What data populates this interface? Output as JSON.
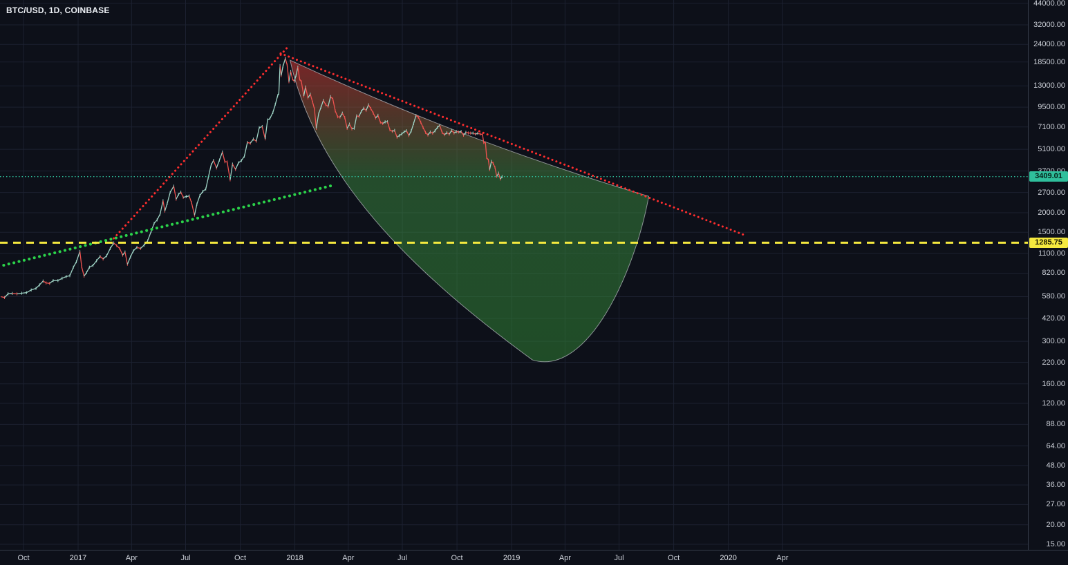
{
  "header": {
    "symbol_title": "BTC/USD, 1D, COINBASE"
  },
  "chart_data": {
    "type": "candlestick",
    "symbol": "BTC/USD",
    "interval": "1D",
    "exchange": "COINBASE",
    "scale": "log",
    "ylim": [
      15,
      44000
    ],
    "grid": true,
    "colors": {
      "background": "#0d1019",
      "grid": "#1c2130",
      "axis_border": "#363c49",
      "axis_text": "#cdd1d9",
      "candle_up": "#9fd4c6",
      "candle_down": "#ef5350",
      "trend_red": "#ff2e2e",
      "trend_green": "#2bd24a",
      "level_yellow": "#f5e93f",
      "current_teal": "#2fbf9c",
      "shape_outline": "#c9ccd2"
    },
    "price_axis": {
      "ticks": [
        "44000.00",
        "32000.00",
        "24000.00",
        "18500.00",
        "13000.00",
        "9500.00",
        "7100.00",
        "5100.00",
        "3700.00",
        "2700.00",
        "2000.00",
        "1500.00",
        "1100.00",
        "820.00",
        "580.00",
        "420.00",
        "300.00",
        "220.00",
        "160.00",
        "120.00",
        "88.00",
        "64.00",
        "48.00",
        "36.00",
        "27.00",
        "20.00",
        "15.00"
      ],
      "current_price": {
        "value": "3409.01",
        "price": 3409.01,
        "color": "#2fbf9c"
      },
      "level_label": {
        "value": "1285.75",
        "price": 1285.75,
        "color": "#f5e93f"
      }
    },
    "time_axis": {
      "ticks": [
        {
          "label": "Oct",
          "date": "2016-10-01"
        },
        {
          "label": "2017",
          "date": "2017-01-01"
        },
        {
          "label": "Apr",
          "date": "2017-04-01"
        },
        {
          "label": "Jul",
          "date": "2017-07-01"
        },
        {
          "label": "Oct",
          "date": "2017-10-01"
        },
        {
          "label": "2018",
          "date": "2018-01-01"
        },
        {
          "label": "Apr",
          "date": "2018-04-01"
        },
        {
          "label": "Jul",
          "date": "2018-07-01"
        },
        {
          "label": "Oct",
          "date": "2018-10-01"
        },
        {
          "label": "2019",
          "date": "2019-01-01"
        },
        {
          "label": "Apr",
          "date": "2019-04-01"
        },
        {
          "label": "Jul",
          "date": "2019-07-01"
        },
        {
          "label": "Oct",
          "date": "2019-10-01"
        },
        {
          "label": "2020",
          "date": "2020-01-01"
        },
        {
          "label": "Apr",
          "date": "2020-04-01"
        }
      ]
    },
    "series": [
      [
        "2016-08-24",
        580
      ],
      [
        "2016-08-30",
        572
      ],
      [
        "2016-09-05",
        605
      ],
      [
        "2016-09-12",
        608
      ],
      [
        "2016-09-20",
        604
      ],
      [
        "2016-09-28",
        610
      ],
      [
        "2016-10-06",
        615
      ],
      [
        "2016-10-14",
        640
      ],
      [
        "2016-10-22",
        655
      ],
      [
        "2016-10-28",
        690
      ],
      [
        "2016-11-03",
        730
      ],
      [
        "2016-11-08",
        710
      ],
      [
        "2016-11-14",
        705
      ],
      [
        "2016-11-20",
        735
      ],
      [
        "2016-11-28",
        735
      ],
      [
        "2016-12-05",
        760
      ],
      [
        "2016-12-12",
        780
      ],
      [
        "2016-12-18",
        790
      ],
      [
        "2016-12-24",
        895
      ],
      [
        "2016-12-29",
        970
      ],
      [
        "2017-01-04",
        1130
      ],
      [
        "2017-01-07",
        900
      ],
      [
        "2017-01-11",
        785
      ],
      [
        "2017-01-15",
        825
      ],
      [
        "2017-01-20",
        895
      ],
      [
        "2017-01-26",
        920
      ],
      [
        "2017-02-01",
        985
      ],
      [
        "2017-02-07",
        1050
      ],
      [
        "2017-02-12",
        1010
      ],
      [
        "2017-02-18",
        1060
      ],
      [
        "2017-02-24",
        1180
      ],
      [
        "2017-03-02",
        1280
      ],
      [
        "2017-03-07",
        1230
      ],
      [
        "2017-03-12",
        1180
      ],
      [
        "2017-03-17",
        1070
      ],
      [
        "2017-03-21",
        1120
      ],
      [
        "2017-03-25",
        935
      ],
      [
        "2017-03-30",
        1040
      ],
      [
        "2017-04-04",
        1140
      ],
      [
        "2017-04-10",
        1200
      ],
      [
        "2017-04-16",
        1180
      ],
      [
        "2017-04-22",
        1240
      ],
      [
        "2017-04-28",
        1320
      ],
      [
        "2017-05-04",
        1520
      ],
      [
        "2017-05-09",
        1710
      ],
      [
        "2017-05-14",
        1800
      ],
      [
        "2017-05-19",
        1960
      ],
      [
        "2017-05-24",
        2390
      ],
      [
        "2017-05-27",
        2050
      ],
      [
        "2017-05-31",
        2290
      ],
      [
        "2017-06-05",
        2700
      ],
      [
        "2017-06-11",
        2960
      ],
      [
        "2017-06-15",
        2440
      ],
      [
        "2017-06-19",
        2620
      ],
      [
        "2017-06-23",
        2710
      ],
      [
        "2017-06-27",
        2510
      ],
      [
        "2017-07-02",
        2540
      ],
      [
        "2017-07-07",
        2560
      ],
      [
        "2017-07-11",
        2320
      ],
      [
        "2017-07-16",
        1930
      ],
      [
        "2017-07-20",
        2270
      ],
      [
        "2017-07-25",
        2580
      ],
      [
        "2017-07-30",
        2740
      ],
      [
        "2017-08-04",
        2840
      ],
      [
        "2017-08-08",
        3340
      ],
      [
        "2017-08-13",
        4050
      ],
      [
        "2017-08-17",
        4330
      ],
      [
        "2017-08-22",
        3870
      ],
      [
        "2017-08-27",
        4350
      ],
      [
        "2017-09-01",
        4900
      ],
      [
        "2017-09-05",
        4250
      ],
      [
        "2017-09-09",
        4230
      ],
      [
        "2017-09-14",
        3250
      ],
      [
        "2017-09-18",
        4100
      ],
      [
        "2017-09-23",
        3790
      ],
      [
        "2017-09-28",
        4180
      ],
      [
        "2017-10-03",
        4320
      ],
      [
        "2017-10-08",
        4610
      ],
      [
        "2017-10-13",
        5640
      ],
      [
        "2017-10-18",
        5580
      ],
      [
        "2017-10-23",
        5930
      ],
      [
        "2017-10-28",
        5750
      ],
      [
        "2017-11-02",
        7020
      ],
      [
        "2017-11-07",
        7140
      ],
      [
        "2017-11-12",
        5950
      ],
      [
        "2017-11-16",
        7870
      ],
      [
        "2017-11-20",
        8040
      ],
      [
        "2017-11-25",
        8790
      ],
      [
        "2017-11-29",
        9880
      ],
      [
        "2017-12-03",
        11250
      ],
      [
        "2017-12-05",
        11650
      ],
      [
        "2017-12-07",
        17550
      ],
      [
        "2017-12-09",
        15150
      ],
      [
        "2017-12-12",
        17400
      ],
      [
        "2017-12-16",
        19500
      ],
      [
        "2017-12-19",
        17700
      ],
      [
        "2017-12-22",
        13830
      ],
      [
        "2017-12-25",
        16100
      ],
      [
        "2017-12-28",
        14400
      ],
      [
        "2017-12-31",
        13900
      ],
      [
        "2018-01-03",
        15200
      ],
      [
        "2018-01-06",
        17150
      ],
      [
        "2018-01-09",
        14400
      ],
      [
        "2018-01-12",
        13800
      ],
      [
        "2018-01-16",
        11200
      ],
      [
        "2018-01-19",
        12800
      ],
      [
        "2018-01-23",
        10900
      ],
      [
        "2018-01-27",
        11500
      ],
      [
        "2018-01-31",
        10200
      ],
      [
        "2018-02-03",
        9250
      ],
      [
        "2018-02-06",
        6950
      ],
      [
        "2018-02-10",
        8600
      ],
      [
        "2018-02-14",
        9500
      ],
      [
        "2018-02-18",
        10500
      ],
      [
        "2018-02-22",
        9850
      ],
      [
        "2018-02-26",
        9600
      ],
      [
        "2018-03-02",
        11100
      ],
      [
        "2018-03-06",
        10700
      ],
      [
        "2018-03-10",
        9000
      ],
      [
        "2018-03-14",
        8250
      ],
      [
        "2018-03-18",
        8200
      ],
      [
        "2018-03-22",
        8700
      ],
      [
        "2018-03-26",
        8150
      ],
      [
        "2018-03-30",
        6950
      ],
      [
        "2018-04-03",
        7400
      ],
      [
        "2018-04-07",
        6900
      ],
      [
        "2018-04-11",
        6970
      ],
      [
        "2018-04-15",
        8350
      ],
      [
        "2018-04-19",
        8290
      ],
      [
        "2018-04-23",
        8950
      ],
      [
        "2018-04-27",
        9350
      ],
      [
        "2018-05-01",
        9050
      ],
      [
        "2018-05-05",
        9830
      ],
      [
        "2018-05-09",
        9300
      ],
      [
        "2018-05-13",
        8700
      ],
      [
        "2018-05-17",
        8100
      ],
      [
        "2018-05-21",
        8420
      ],
      [
        "2018-05-25",
        7600
      ],
      [
        "2018-05-29",
        7470
      ],
      [
        "2018-06-02",
        7650
      ],
      [
        "2018-06-06",
        7650
      ],
      [
        "2018-06-10",
        6800
      ],
      [
        "2018-06-14",
        6650
      ],
      [
        "2018-06-18",
        6740
      ],
      [
        "2018-06-22",
        6100
      ],
      [
        "2018-06-26",
        6250
      ],
      [
        "2018-06-30",
        6400
      ],
      [
        "2018-07-04",
        6600
      ],
      [
        "2018-07-08",
        6710
      ],
      [
        "2018-07-12",
        6250
      ],
      [
        "2018-07-16",
        6700
      ],
      [
        "2018-07-20",
        7470
      ],
      [
        "2018-07-24",
        8400
      ],
      [
        "2018-07-28",
        8200
      ],
      [
        "2018-08-01",
        7600
      ],
      [
        "2018-08-05",
        7020
      ],
      [
        "2018-08-09",
        6550
      ],
      [
        "2018-08-13",
        6300
      ],
      [
        "2018-08-17",
        6580
      ],
      [
        "2018-08-21",
        6470
      ],
      [
        "2018-08-25",
        6700
      ],
      [
        "2018-08-29",
        7040
      ],
      [
        "2018-09-02",
        7270
      ],
      [
        "2018-09-06",
        6530
      ],
      [
        "2018-09-10",
        6330
      ],
      [
        "2018-09-14",
        6520
      ],
      [
        "2018-09-18",
        6370
      ],
      [
        "2018-09-22",
        6740
      ],
      [
        "2018-09-26",
        6480
      ],
      [
        "2018-09-30",
        6620
      ],
      [
        "2018-10-04",
        6580
      ],
      [
        "2018-10-08",
        6640
      ],
      [
        "2018-10-12",
        6280
      ],
      [
        "2018-10-16",
        6550
      ],
      [
        "2018-10-20",
        6490
      ],
      [
        "2018-10-24",
        6480
      ],
      [
        "2018-10-28",
        6480
      ],
      [
        "2018-11-01",
        6380
      ],
      [
        "2018-11-05",
        6460
      ],
      [
        "2018-11-09",
        6390
      ],
      [
        "2018-11-13",
        6350
      ],
      [
        "2018-11-15",
        5640
      ],
      [
        "2018-11-18",
        5600
      ],
      [
        "2018-11-20",
        4520
      ],
      [
        "2018-11-23",
        4340
      ],
      [
        "2018-11-25",
        3780
      ],
      [
        "2018-11-28",
        4270
      ],
      [
        "2018-12-01",
        4140
      ],
      [
        "2018-12-04",
        3900
      ],
      [
        "2018-12-07",
        3420
      ],
      [
        "2018-12-10",
        3590
      ],
      [
        "2018-12-13",
        3290
      ],
      [
        "2018-12-16",
        3409
      ]
    ],
    "drawings": {
      "uptrend_line": {
        "style": "dotted",
        "color": "#ff2e2e",
        "from": {
          "date": "2017-03-02",
          "price": 1370
        },
        "to": {
          "date": "2017-12-21",
          "price": 23300
        }
      },
      "downtrend_line": {
        "style": "dotted",
        "color": "#ff2e2e",
        "from": {
          "date": "2017-12-08",
          "price": 21000
        },
        "to": {
          "date": "2020-02-01",
          "price": 1420
        }
      },
      "green_trend_line": {
        "style": "dotted",
        "color": "#2bd24a",
        "from": {
          "date": "2016-08-20",
          "price": 905
        },
        "to": {
          "date": "2018-03-08",
          "price": 3010
        }
      },
      "yellow_level_line": {
        "style": "dashed",
        "color": "#f5e93f",
        "price": 1285.75
      },
      "current_price_line": {
        "style": "dotted",
        "color": "#2fbf9c",
        "price": 3409.01
      },
      "projection_shape": {
        "apex": {
          "date": "2017-12-24",
          "price": 19000
        },
        "trough": {
          "date": "2019-02-05",
          "price": 228
        },
        "tip": {
          "date": "2019-08-20",
          "price": 2550
        },
        "fill_top": "#e53935",
        "fill_bottom": "#2e7d32"
      }
    }
  }
}
